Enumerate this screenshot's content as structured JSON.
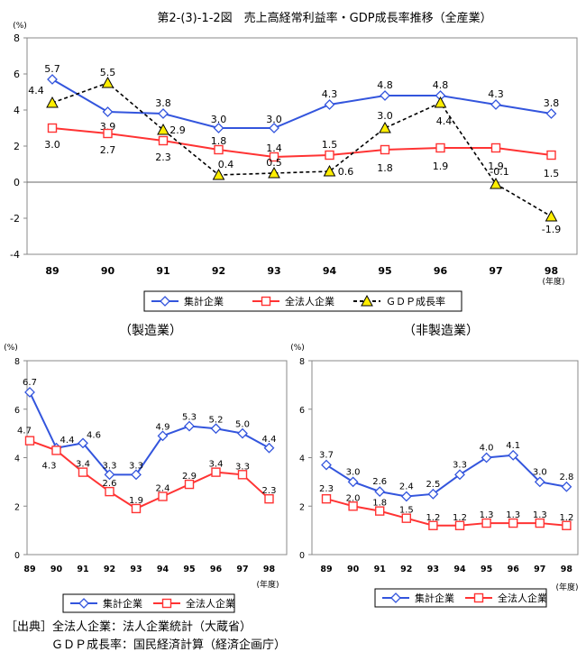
{
  "chart_data": [
    {
      "id": "main",
      "type": "line",
      "title": "第2-(3)-1-2図　売上高経常利益率・GDP成長率推移（全産業）",
      "ylabel": "(%)",
      "xunit": "(年度)",
      "categories": [
        "89",
        "90",
        "91",
        "92",
        "93",
        "94",
        "95",
        "96",
        "97",
        "98"
      ],
      "ylim": [
        -4,
        8
      ],
      "yticks": [
        "8",
        "6",
        "4",
        "2",
        "0",
        "-2",
        "-4"
      ],
      "series": [
        {
          "name": "集計企業",
          "color": "#3355dd",
          "marker": "diamond",
          "values": [
            5.7,
            3.9,
            3.8,
            3.0,
            3.0,
            4.3,
            4.8,
            4.8,
            4.3,
            3.8
          ],
          "labels": [
            "5.7",
            "3.9",
            "3.8",
            "3.0",
            "3.0",
            "4.3",
            "4.8",
            "4.8",
            "4.3",
            "3.8"
          ]
        },
        {
          "name": "全法人企業",
          "color": "#ff3333",
          "marker": "square",
          "values": [
            3.0,
            2.7,
            2.3,
            1.8,
            1.4,
            1.5,
            1.8,
            1.9,
            1.9,
            1.5
          ],
          "labels": [
            "3.0",
            "2.7",
            "2.3",
            "1.8",
            "1.4",
            "1.5",
            "1.8",
            "1.9",
            "1.9",
            "1.5"
          ]
        },
        {
          "name": "ＧＤＰ成長率",
          "color": "#000000",
          "marker": "triangle",
          "dashed": true,
          "values": [
            4.4,
            5.5,
            2.9,
            0.4,
            0.5,
            0.6,
            3.0,
            4.4,
            -0.1,
            -1.9
          ],
          "labels": [
            "4.4",
            "5.5",
            "2.9",
            "0.4",
            "0.5",
            "0.6",
            "3.0",
            "4.4",
            "-0.1",
            "-1.9"
          ]
        }
      ]
    },
    {
      "id": "manufacturing",
      "type": "line",
      "title": "（製造業）",
      "ylabel": "(%)",
      "xunit": "(年度)",
      "categories": [
        "89",
        "90",
        "91",
        "92",
        "93",
        "94",
        "95",
        "96",
        "97",
        "98"
      ],
      "ylim": [
        0,
        8
      ],
      "yticks": [
        "8",
        "6",
        "4",
        "2",
        "0"
      ],
      "series": [
        {
          "name": "集計企業",
          "color": "#3355dd",
          "marker": "diamond",
          "values": [
            6.7,
            4.4,
            4.6,
            3.3,
            3.3,
            4.9,
            5.3,
            5.2,
            5.0,
            4.4
          ],
          "labels": [
            "6.7",
            "4.4",
            "4.6",
            "3.3",
            "3.3",
            "4.9",
            "5.3",
            "5.2",
            "5.0",
            "4.4"
          ]
        },
        {
          "name": "全法人企業",
          "color": "#ff3333",
          "marker": "square",
          "values": [
            4.7,
            4.3,
            3.4,
            2.6,
            1.9,
            2.4,
            2.9,
            3.4,
            3.3,
            2.3
          ],
          "labels": [
            "4.7",
            "4.3",
            "3.4",
            "2.6",
            "1.9",
            "2.4",
            "2.9",
            "3.4",
            "3.3",
            "2.3"
          ]
        }
      ]
    },
    {
      "id": "non_manufacturing",
      "type": "line",
      "title": "（非製造業）",
      "ylabel": "(%)",
      "xunit": "(年度)",
      "categories": [
        "89",
        "90",
        "91",
        "92",
        "93",
        "94",
        "95",
        "96",
        "97",
        "98"
      ],
      "ylim": [
        0,
        8
      ],
      "yticks": [
        "8",
        "6",
        "4",
        "2",
        "0"
      ],
      "series": [
        {
          "name": "集計企業",
          "color": "#3355dd",
          "marker": "diamond",
          "values": [
            3.7,
            3.0,
            2.6,
            2.4,
            2.5,
            3.3,
            4.0,
            4.1,
            3.0,
            2.8
          ],
          "labels": [
            "3.7",
            "3.0",
            "2.6",
            "2.4",
            "2.5",
            "3.3",
            "4.0",
            "4.1",
            "3.0",
            "2.8"
          ]
        },
        {
          "name": "全法人企業",
          "color": "#ff3333",
          "marker": "square",
          "values": [
            2.3,
            2.0,
            1.8,
            1.5,
            1.2,
            1.2,
            1.3,
            1.3,
            1.3,
            1.2
          ],
          "labels": [
            "2.3",
            "2.0",
            "1.8",
            "1.5",
            "1.2",
            "1.2",
            "1.3",
            "1.3",
            "1.3",
            "1.2"
          ]
        }
      ]
    }
  ],
  "source": {
    "line1": "［出典］全法人企業：法人企業統計（大蔵省）",
    "line2": "ＧＤＰ成長率：国民経済計算（経済企画庁）"
  }
}
